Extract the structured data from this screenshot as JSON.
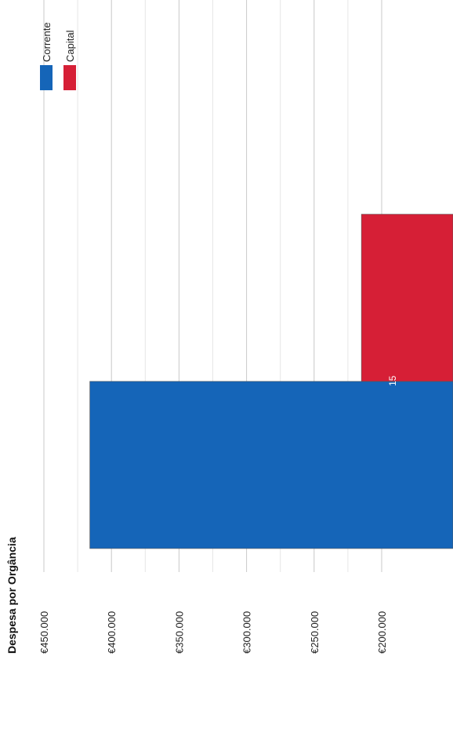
{
  "chart_data": {
    "type": "bar",
    "title": "Despesa por Orgância",
    "categories": [
      "15"
    ],
    "series": [
      {
        "name": "Corrente",
        "values": [
          416000
        ],
        "color": "#1565b8"
      },
      {
        "name": "Capital",
        "values": [
          215000
        ],
        "color": "#d61f36"
      }
    ],
    "ylim": [
      180000,
      457000
    ],
    "yticks": [
      450000,
      400000,
      350000,
      300000,
      250000,
      200000
    ],
    "ytick_labels": [
      "€450.000",
      "€400.000",
      "€350.000",
      "€300.000",
      "€250.000",
      "€200.000"
    ],
    "grid": true,
    "legend_position": "top-right",
    "orientation": "rotated"
  }
}
